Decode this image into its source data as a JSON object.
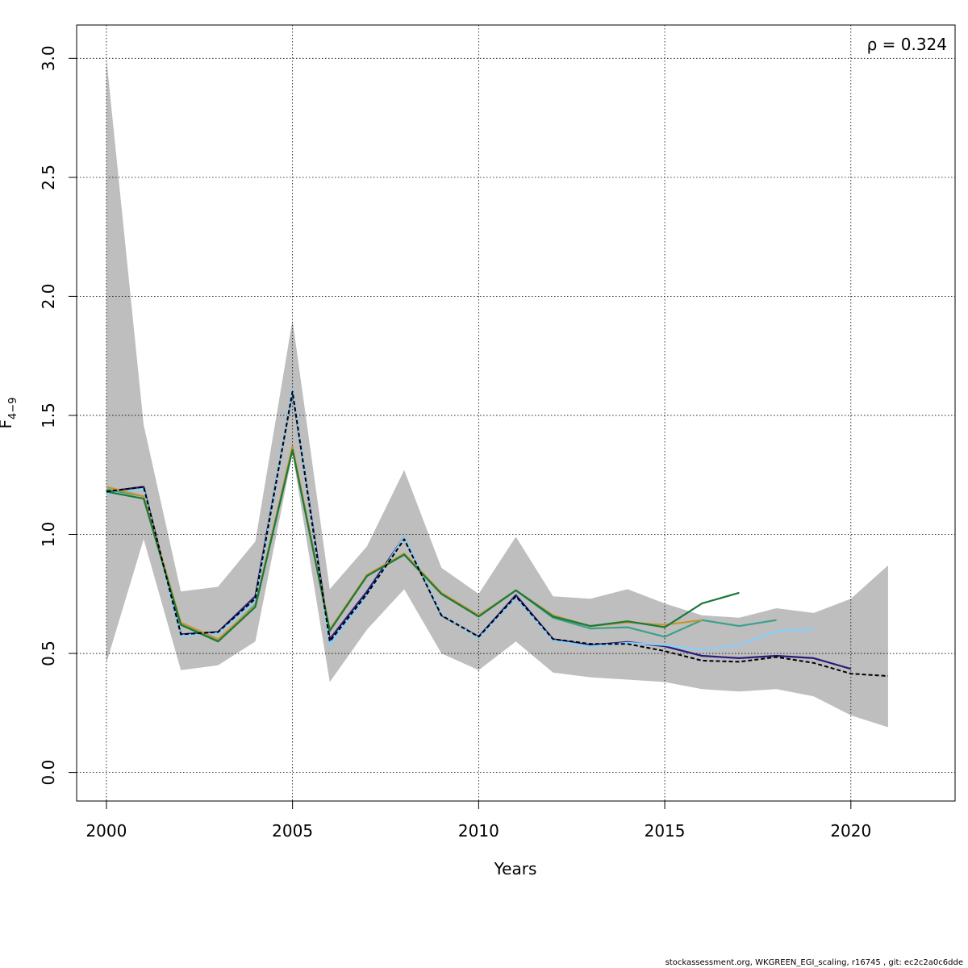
{
  "chart_data": {
    "type": "line",
    "xlabel": "Years",
    "ylabel": "F",
    "ylabel_sub": "4−9",
    "xlim": [
      1999.2,
      2022.8
    ],
    "ylim": [
      -0.12,
      3.14
    ],
    "xticks": [
      2000,
      2005,
      2010,
      2015,
      2020
    ],
    "yticks": [
      0.0,
      0.5,
      1.0,
      1.5,
      2.0,
      2.5,
      3.0
    ],
    "ytick_labels": [
      "0.0",
      "0.5",
      "1.0",
      "1.5",
      "2.0",
      "2.5",
      "3.0"
    ],
    "grid": true,
    "annotation": "ρ = 0.324",
    "confidence_band": {
      "x": [
        2000,
        2001,
        2002,
        2003,
        2004,
        2005,
        2006,
        2007,
        2008,
        2009,
        2010,
        2011,
        2012,
        2013,
        2014,
        2015,
        2016,
        2017,
        2018,
        2019,
        2020,
        2021
      ],
      "upper": [
        3.0,
        1.46,
        0.76,
        0.78,
        0.97,
        1.9,
        0.77,
        0.95,
        1.27,
        0.86,
        0.75,
        0.99,
        0.74,
        0.73,
        0.77,
        0.71,
        0.66,
        0.65,
        0.69,
        0.67,
        0.73,
        0.87
      ],
      "lower": [
        0.46,
        0.98,
        0.43,
        0.45,
        0.55,
        1.34,
        0.38,
        0.6,
        0.77,
        0.5,
        0.43,
        0.55,
        0.42,
        0.4,
        0.39,
        0.38,
        0.35,
        0.34,
        0.35,
        0.32,
        0.24,
        0.19
      ]
    },
    "series": [
      {
        "color": "#000000",
        "dashed": true,
        "x": [
          2000,
          2001,
          2002,
          2003,
          2004,
          2005,
          2006,
          2007,
          2008,
          2009,
          2010,
          2011,
          2012,
          2013,
          2014,
          2015,
          2016,
          2017,
          2018,
          2019,
          2020,
          2021
        ],
        "values": [
          1.18,
          1.2,
          0.58,
          0.59,
          0.73,
          1.6,
          0.55,
          0.75,
          0.98,
          0.66,
          0.57,
          0.74,
          0.56,
          0.54,
          0.54,
          0.51,
          0.47,
          0.465,
          0.485,
          0.46,
          0.415,
          0.405
        ]
      },
      {
        "color": "#2a1b7a",
        "dashed": false,
        "x": [
          2000,
          2001,
          2002,
          2003,
          2004,
          2005,
          2006,
          2007,
          2008,
          2009,
          2010,
          2011,
          2012,
          2013,
          2014,
          2015,
          2016,
          2017,
          2018,
          2019,
          2020
        ],
        "values": [
          1.18,
          1.2,
          0.58,
          0.59,
          0.74,
          1.6,
          0.56,
          0.76,
          0.99,
          0.66,
          0.57,
          0.745,
          0.56,
          0.535,
          0.548,
          0.53,
          0.49,
          0.48,
          0.49,
          0.48,
          0.435
        ]
      },
      {
        "color": "#87cefa",
        "dashed": false,
        "x": [
          2000,
          2001,
          2002,
          2003,
          2004,
          2005,
          2006,
          2007,
          2008,
          2009,
          2010,
          2011,
          2012,
          2013,
          2014,
          2015,
          2016,
          2017,
          2018,
          2019
        ],
        "values": [
          1.17,
          1.19,
          0.575,
          0.585,
          0.72,
          1.61,
          0.535,
          0.745,
          0.99,
          0.665,
          0.565,
          0.735,
          0.555,
          0.53,
          0.545,
          0.535,
          0.515,
          0.535,
          0.595,
          0.6
        ]
      },
      {
        "color": "#3aa18c",
        "dashed": false,
        "x": [
          2000,
          2001,
          2002,
          2003,
          2004,
          2005,
          2006,
          2007,
          2008,
          2009,
          2010,
          2011,
          2012,
          2013,
          2014,
          2015,
          2016,
          2017,
          2018
        ],
        "values": [
          1.19,
          1.16,
          0.625,
          0.555,
          0.705,
          1.36,
          0.6,
          0.825,
          0.915,
          0.75,
          0.655,
          0.765,
          0.65,
          0.605,
          0.61,
          0.57,
          0.64,
          0.615,
          0.64
        ]
      },
      {
        "color": "#c8962e",
        "dashed": false,
        "x": [
          2000,
          2001,
          2002,
          2003,
          2004,
          2005,
          2006,
          2007,
          2008,
          2009,
          2010,
          2011,
          2012,
          2013,
          2014,
          2015,
          2016
        ],
        "values": [
          1.2,
          1.16,
          0.63,
          0.56,
          0.7,
          1.37,
          0.6,
          0.83,
          0.92,
          0.755,
          0.66,
          0.765,
          0.66,
          0.615,
          0.63,
          0.62,
          0.64
        ]
      },
      {
        "color": "#1a7a3a",
        "dashed": false,
        "x": [
          2000,
          2001,
          2002,
          2003,
          2004,
          2005,
          2006,
          2007,
          2008,
          2009,
          2010,
          2011,
          2012,
          2013,
          2014,
          2015,
          2016,
          2017
        ],
        "values": [
          1.18,
          1.15,
          0.62,
          0.55,
          0.695,
          1.355,
          0.595,
          0.825,
          0.915,
          0.75,
          0.655,
          0.765,
          0.655,
          0.615,
          0.635,
          0.61,
          0.71,
          0.755
        ]
      }
    ]
  },
  "footer": "stockassessment.org, WKGREEN_EGI_scaling, r16745 , git: ec2c2a0c6dde"
}
